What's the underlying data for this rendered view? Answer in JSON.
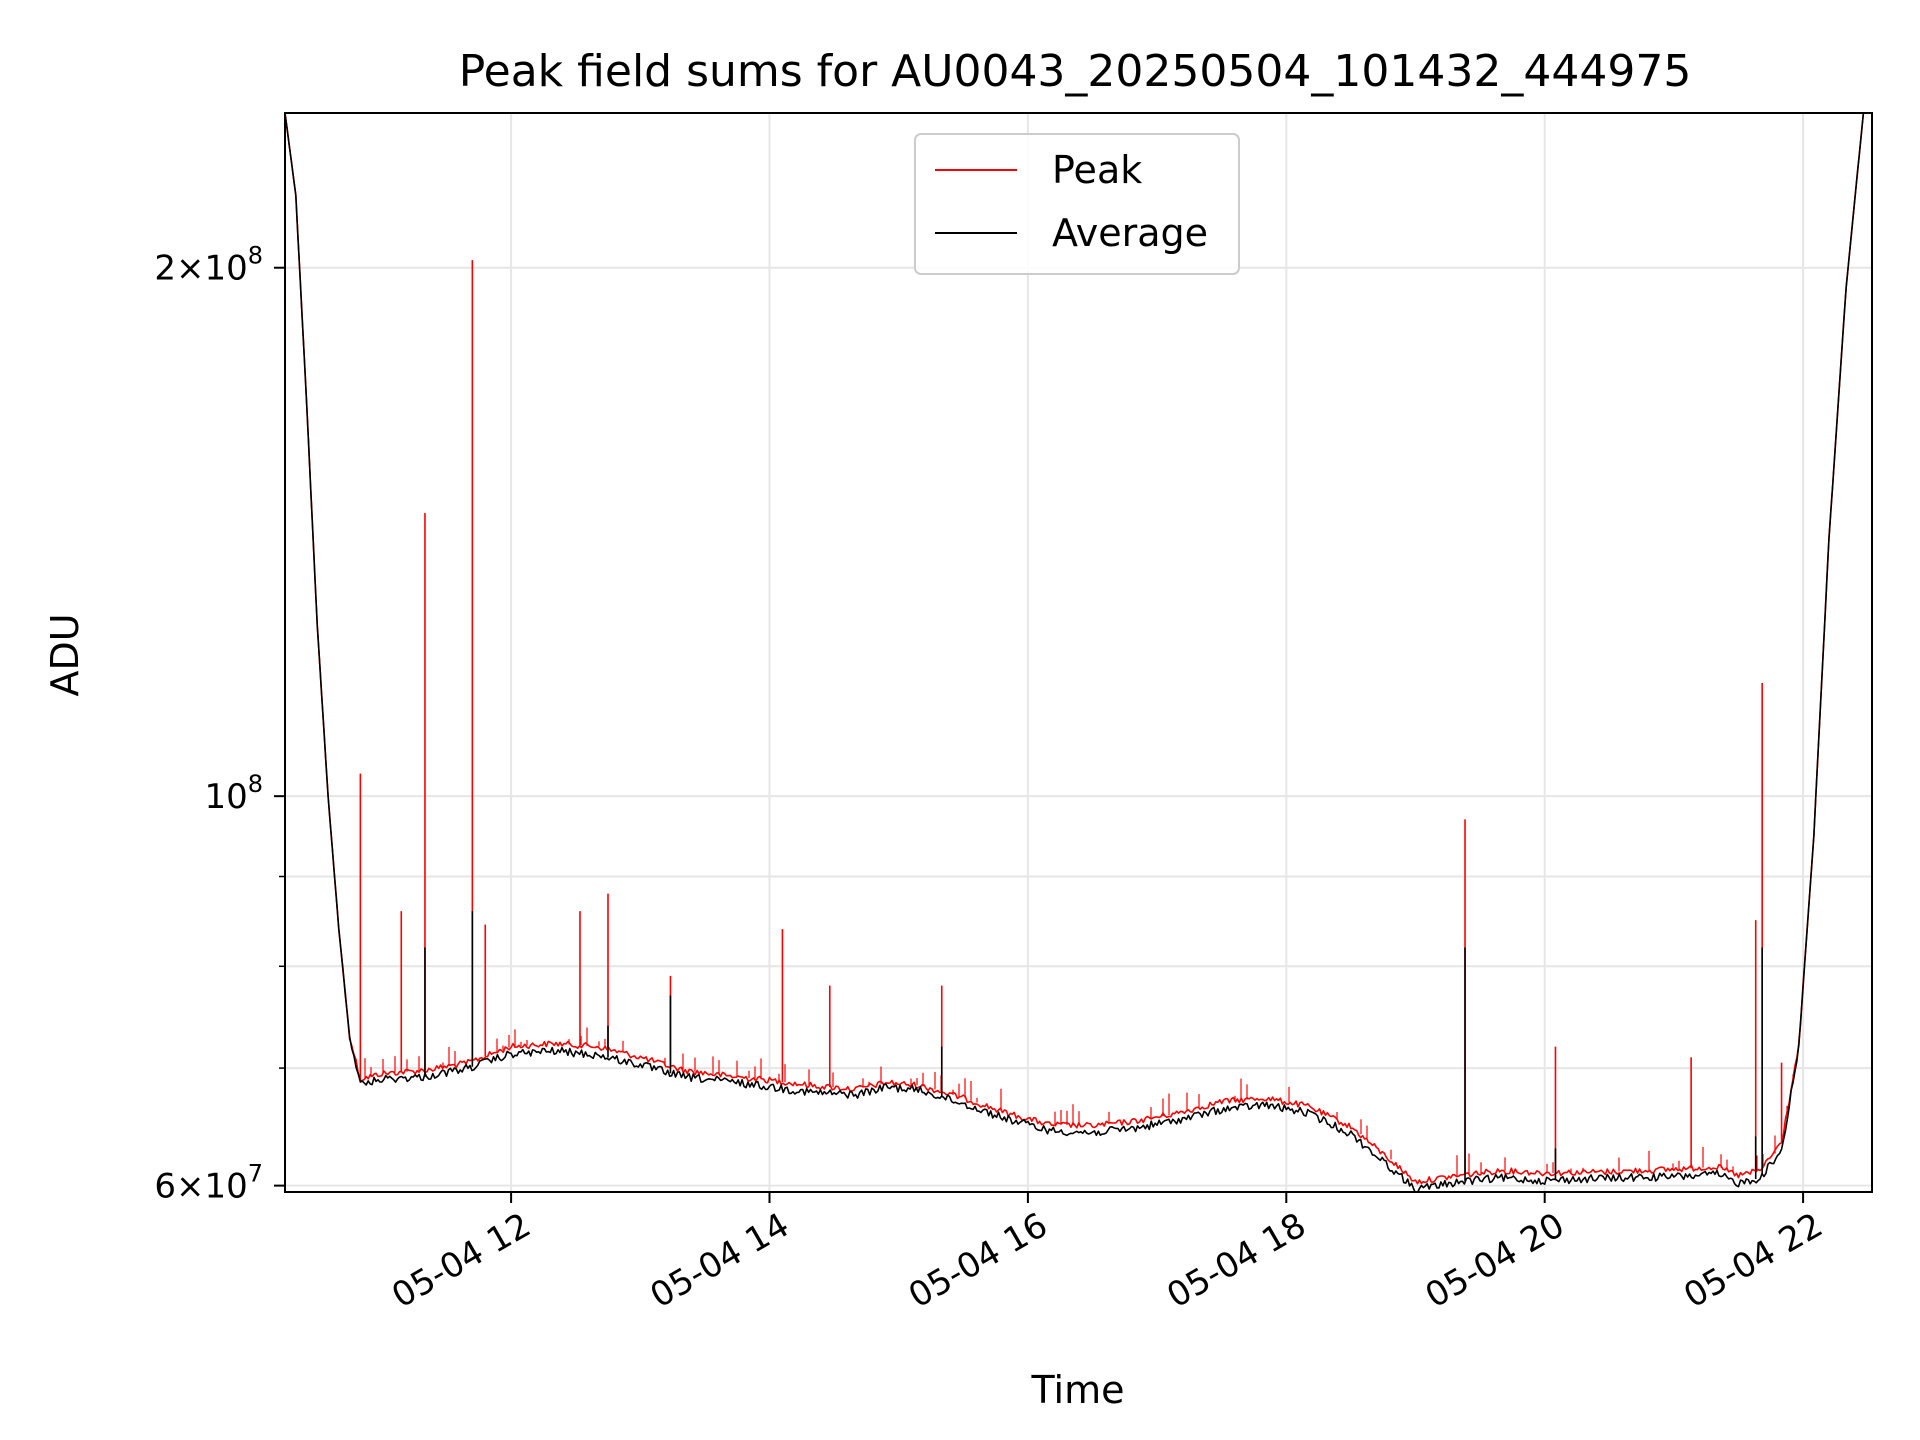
{
  "chart_data": {
    "type": "line",
    "title": "Peak field sums for AU0043_20250504_101432_444975",
    "xlabel": "Time",
    "ylabel": "ADU",
    "y_scale": "log",
    "grid": true,
    "legend_position": "top-center",
    "xlim": [
      "2025-05-04 10:15",
      "2025-05-04 22:32"
    ],
    "ylim": [
      59500000,
      245000000
    ],
    "x_ticks": [
      {
        "value": "2025-05-04 12:00",
        "label": "05-04 12"
      },
      {
        "value": "2025-05-04 14:00",
        "label": "05-04 14"
      },
      {
        "value": "2025-05-04 16:00",
        "label": "05-04 16"
      },
      {
        "value": "2025-05-04 18:00",
        "label": "05-04 18"
      },
      {
        "value": "2025-05-04 20:00",
        "label": "05-04 20"
      },
      {
        "value": "2025-05-04 22:00",
        "label": "05-04 22"
      }
    ],
    "y_ticks": [
      {
        "value": 60000000,
        "base": "6×10",
        "exp": "7"
      },
      {
        "value": 100000000,
        "base": "10",
        "exp": "8"
      },
      {
        "value": 200000000,
        "base": "2×10",
        "exp": "8"
      }
    ],
    "y_minor_ticks": [
      70000000,
      80000000,
      90000000
    ],
    "series": [
      {
        "name": "Peak",
        "color": "#ff0000",
        "baseline": [
          [
            "2025-05-04 10:15",
            245000000
          ],
          [
            "2025-05-04 10:20",
            220000000
          ],
          [
            "2025-05-04 10:25",
            168000000
          ],
          [
            "2025-05-04 10:30",
            125000000
          ],
          [
            "2025-05-04 10:35",
            100000000
          ],
          [
            "2025-05-04 10:40",
            84000000
          ],
          [
            "2025-05-04 10:45",
            73000000
          ],
          [
            "2025-05-04 10:50",
            69000000
          ],
          [
            "2025-05-04 11:00",
            69500000
          ],
          [
            "2025-05-04 11:20",
            69800000
          ],
          [
            "2025-05-04 11:40",
            70500000
          ],
          [
            "2025-05-04 12:00",
            72000000
          ],
          [
            "2025-05-04 12:20",
            72300000
          ],
          [
            "2025-05-04 12:40",
            72000000
          ],
          [
            "2025-05-04 13:00",
            71000000
          ],
          [
            "2025-05-04 13:20",
            69800000
          ],
          [
            "2025-05-04 13:40",
            69300000
          ],
          [
            "2025-05-04 14:00",
            68900000
          ],
          [
            "2025-05-04 14:20",
            68400000
          ],
          [
            "2025-05-04 14:40",
            68100000
          ],
          [
            "2025-05-04 14:55",
            68700000
          ],
          [
            "2025-05-04 15:10",
            68400000
          ],
          [
            "2025-05-04 15:30",
            67300000
          ],
          [
            "2025-05-04 15:50",
            66000000
          ],
          [
            "2025-05-04 16:10",
            65000000
          ],
          [
            "2025-05-04 16:30",
            64900000
          ],
          [
            "2025-05-04 16:50",
            65300000
          ],
          [
            "2025-05-04 17:10",
            66000000
          ],
          [
            "2025-05-04 17:30",
            67000000
          ],
          [
            "2025-05-04 17:50",
            67300000
          ],
          [
            "2025-05-04 18:10",
            66600000
          ],
          [
            "2025-05-04 18:30",
            64800000
          ],
          [
            "2025-05-04 18:50",
            61800000
          ],
          [
            "2025-05-04 19:00",
            60300000
          ],
          [
            "2025-05-04 19:20",
            60800000
          ],
          [
            "2025-05-04 19:40",
            61200000
          ],
          [
            "2025-05-04 20:00",
            61000000
          ],
          [
            "2025-05-04 20:30",
            61100000
          ],
          [
            "2025-05-04 21:00",
            61300000
          ],
          [
            "2025-05-04 21:20",
            61500000
          ],
          [
            "2025-05-04 21:30",
            60800000
          ],
          [
            "2025-05-04 21:40",
            61200000
          ],
          [
            "2025-05-04 21:50",
            63500000
          ],
          [
            "2025-05-04 21:58",
            72000000
          ],
          [
            "2025-05-04 22:05",
            95000000
          ],
          [
            "2025-05-04 22:12",
            140000000
          ],
          [
            "2025-05-04 22:20",
            195000000
          ],
          [
            "2025-05-04 22:28",
            245000000
          ]
        ],
        "spikes": [
          [
            "2025-05-04 10:50",
            103000000
          ],
          [
            "2025-05-04 11:09",
            86000000
          ],
          [
            "2025-05-04 11:20",
            145000000
          ],
          [
            "2025-05-04 11:42",
            202000000
          ],
          [
            "2025-05-04 11:48",
            84500000
          ],
          [
            "2025-05-04 12:32",
            86000000
          ],
          [
            "2025-05-04 12:45",
            88000000
          ],
          [
            "2025-05-04 13:14",
            79000000
          ],
          [
            "2025-05-04 14:06",
            84000000
          ],
          [
            "2025-05-04 14:28",
            78000000
          ],
          [
            "2025-05-04 15:20",
            78000000
          ],
          [
            "2025-05-04 19:23",
            97000000
          ],
          [
            "2025-05-04 20:05",
            72000000
          ],
          [
            "2025-05-04 21:08",
            71000000
          ],
          [
            "2025-05-04 21:38",
            85000000
          ],
          [
            "2025-05-04 21:41",
            116000000
          ],
          [
            "2025-05-04 21:50",
            70500000
          ]
        ]
      },
      {
        "name": "Average",
        "color": "#000000",
        "baseline": [
          [
            "2025-05-04 10:15",
            245000000
          ],
          [
            "2025-05-04 10:20",
            220000000
          ],
          [
            "2025-05-04 10:25",
            168000000
          ],
          [
            "2025-05-04 10:30",
            125000000
          ],
          [
            "2025-05-04 10:35",
            100000000
          ],
          [
            "2025-05-04 10:40",
            84000000
          ],
          [
            "2025-05-04 10:45",
            73000000
          ],
          [
            "2025-05-04 10:50",
            68500000
          ],
          [
            "2025-05-04 11:00",
            69000000
          ],
          [
            "2025-05-04 11:20",
            69200000
          ],
          [
            "2025-05-04 11:40",
            70000000
          ],
          [
            "2025-05-04 12:00",
            71300000
          ],
          [
            "2025-05-04 12:20",
            71600000
          ],
          [
            "2025-05-04 12:40",
            71200000
          ],
          [
            "2025-05-04 13:00",
            70300000
          ],
          [
            "2025-05-04 13:20",
            69200000
          ],
          [
            "2025-05-04 13:40",
            68800000
          ],
          [
            "2025-05-04 14:00",
            68300000
          ],
          [
            "2025-05-04 14:20",
            67800000
          ],
          [
            "2025-05-04 14:40",
            67600000
          ],
          [
            "2025-05-04 14:55",
            68300000
          ],
          [
            "2025-05-04 15:10",
            68000000
          ],
          [
            "2025-05-04 15:30",
            66800000
          ],
          [
            "2025-05-04 15:50",
            65500000
          ],
          [
            "2025-05-04 16:10",
            64500000
          ],
          [
            "2025-05-04 16:30",
            64300000
          ],
          [
            "2025-05-04 16:50",
            64700000
          ],
          [
            "2025-05-04 17:10",
            65400000
          ],
          [
            "2025-05-04 17:30",
            66300000
          ],
          [
            "2025-05-04 17:50",
            66700000
          ],
          [
            "2025-05-04 18:10",
            66000000
          ],
          [
            "2025-05-04 18:30",
            64200000
          ],
          [
            "2025-05-04 18:50",
            61200000
          ],
          [
            "2025-05-04 19:00",
            59700000
          ],
          [
            "2025-05-04 19:20",
            60300000
          ],
          [
            "2025-05-04 19:40",
            60600000
          ],
          [
            "2025-05-04 20:00",
            60400000
          ],
          [
            "2025-05-04 20:30",
            60600000
          ],
          [
            "2025-05-04 21:00",
            60700000
          ],
          [
            "2025-05-04 21:20",
            60900000
          ],
          [
            "2025-05-04 21:30",
            60200000
          ],
          [
            "2025-05-04 21:40",
            60600000
          ],
          [
            "2025-05-04 21:50",
            62800000
          ],
          [
            "2025-05-04 21:58",
            72000000
          ],
          [
            "2025-05-04 22:05",
            95000000
          ],
          [
            "2025-05-04 22:12",
            140000000
          ],
          [
            "2025-05-04 22:20",
            195000000
          ],
          [
            "2025-05-04 22:28",
            245000000
          ]
        ],
        "spikes": [
          [
            "2025-05-04 11:20",
            82000000
          ],
          [
            "2025-05-04 11:42",
            86000000
          ],
          [
            "2025-05-04 12:45",
            74000000
          ],
          [
            "2025-05-04 13:14",
            77000000
          ],
          [
            "2025-05-04 15:20",
            72000000
          ],
          [
            "2025-05-04 19:23",
            82000000
          ],
          [
            "2025-05-04 20:05",
            63000000
          ],
          [
            "2025-05-04 21:38",
            64000000
          ],
          [
            "2025-05-04 21:41",
            82000000
          ]
        ]
      }
    ]
  }
}
